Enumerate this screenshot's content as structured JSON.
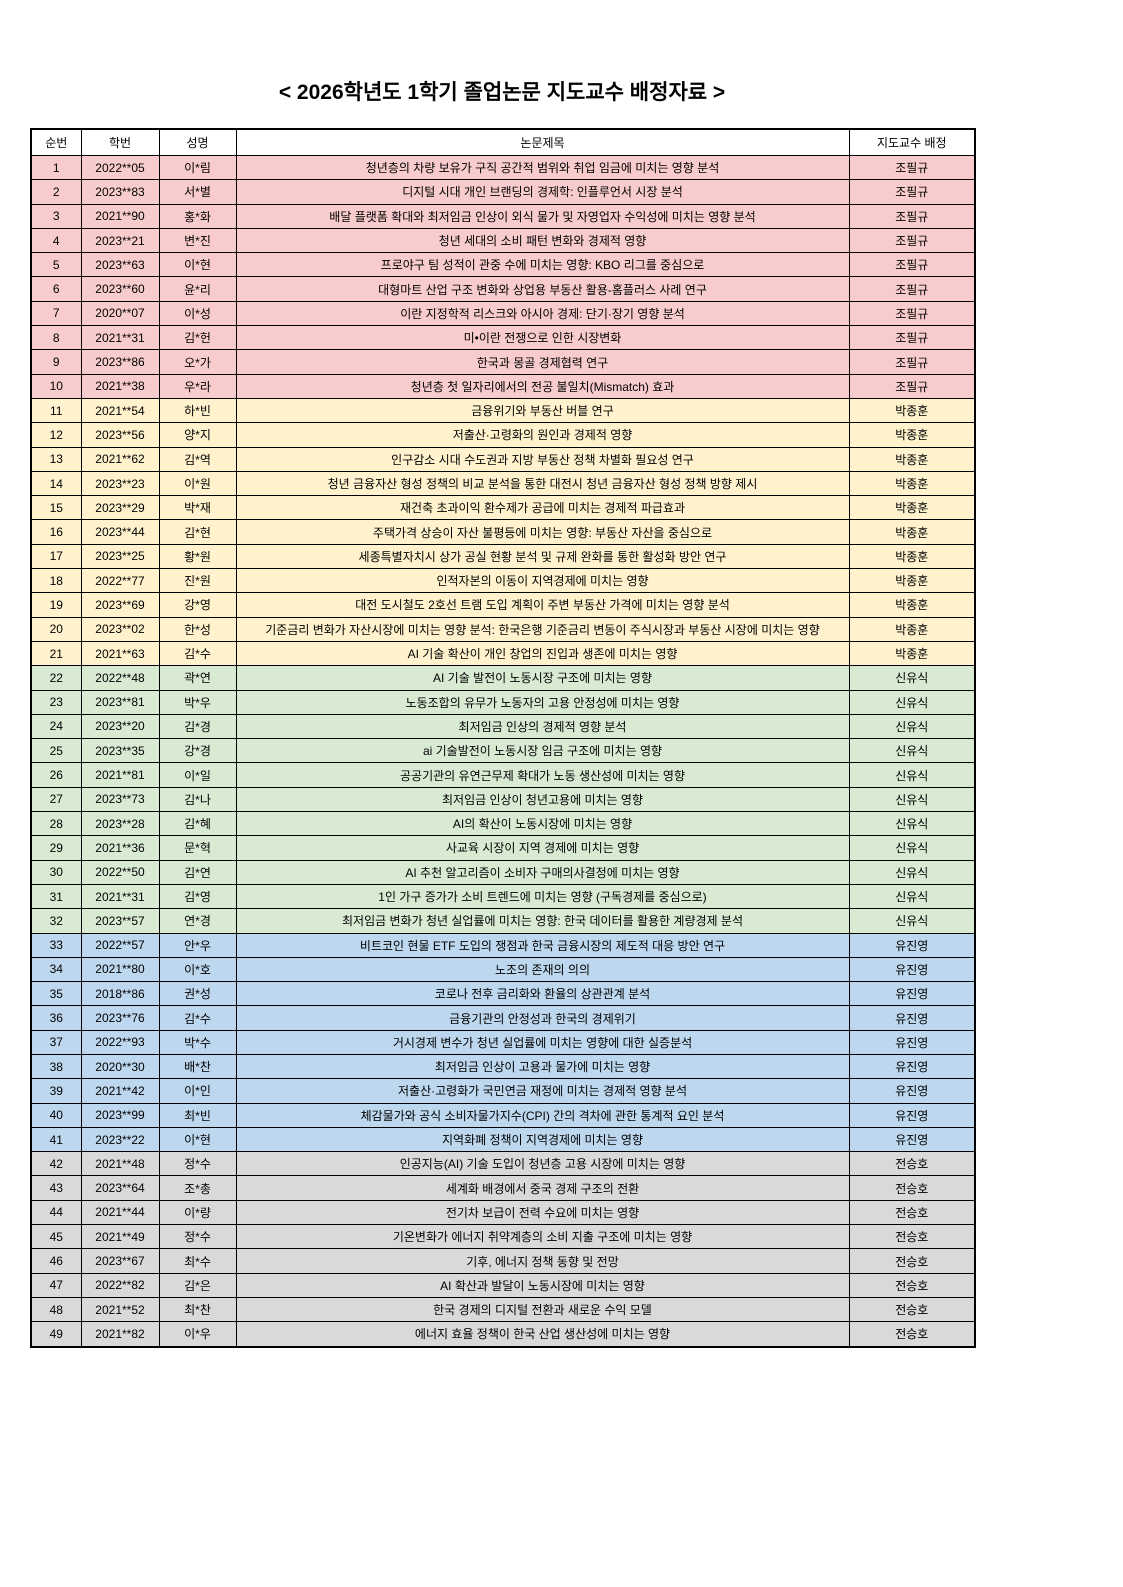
{
  "title": "< 2026학년도 1학기 졸업논문 지도교수 배정자료 >",
  "advisor_colors": {
    "조필규": "#F8CBCC",
    "박종훈": "#FFF2CC",
    "신유식": "#D9EAD3",
    "유진영": "#BDD7EE",
    "전승호": "#D9D9D9"
  },
  "table": {
    "columns": {
      "no": "순번",
      "student_id": "학번",
      "name": "성명",
      "thesis_title": "논문제목",
      "advisor": "지도교수 배정"
    },
    "rows": [
      {
        "no": "1",
        "student_id": "2022**05",
        "name": "이*림",
        "thesis_title": "청년층의 차량 보유가 구직 공간적 범위와 취업 임금에 미치는 영향 분석",
        "advisor": "조필규"
      },
      {
        "no": "2",
        "student_id": "2023**83",
        "name": "서*별",
        "thesis_title": "디지털 시대 개인 브랜딩의 경제학: 인플루언서 시장 분석",
        "advisor": "조필규"
      },
      {
        "no": "3",
        "student_id": "2021**90",
        "name": "홍*화",
        "thesis_title": "배달 플랫폼 확대와 최저임금 인상이 외식 물가 및 자영업자 수익성에 미치는 영향 분석",
        "advisor": "조필규"
      },
      {
        "no": "4",
        "student_id": "2023**21",
        "name": "변*진",
        "thesis_title": "청년 세대의 소비 패턴 변화와 경제적 영향",
        "advisor": "조필규"
      },
      {
        "no": "5",
        "student_id": "2023**63",
        "name": "이*현",
        "thesis_title": "프로야구 팀 성적이 관중 수에 미치는 영향: KBO 리그를 중심으로",
        "advisor": "조필규"
      },
      {
        "no": "6",
        "student_id": "2023**60",
        "name": "윤*리",
        "thesis_title": "대형마트 산업 구조 변화와 상업용 부동산 활용-홈플러스 사례 연구",
        "advisor": "조필규"
      },
      {
        "no": "7",
        "student_id": "2020**07",
        "name": "이*성",
        "thesis_title": "이란 지정학적 리스크와 아시아 경제: 단기·장기 영향 분석",
        "advisor": "조필규"
      },
      {
        "no": "8",
        "student_id": "2021**31",
        "name": "김*헌",
        "thesis_title": "미•이란 전쟁으로 인한 시장변화",
        "advisor": "조필규"
      },
      {
        "no": "9",
        "student_id": "2023**86",
        "name": "오*가",
        "thesis_title": "한국과 몽골 경제협력 연구",
        "advisor": "조필규"
      },
      {
        "no": "10",
        "student_id": "2021**38",
        "name": "우*라",
        "thesis_title": "청년층 첫 일자리에서의 전공 불일치(Mismatch) 효과",
        "advisor": "조필규"
      },
      {
        "no": "11",
        "student_id": "2021**54",
        "name": "하*빈",
        "thesis_title": "금융위기와 부동산 버블 연구",
        "advisor": "박종훈"
      },
      {
        "no": "12",
        "student_id": "2023**56",
        "name": "양*지",
        "thesis_title": "저출산·고령화의 원인과 경제적 영향",
        "advisor": "박종훈"
      },
      {
        "no": "13",
        "student_id": "2021**62",
        "name": "김*역",
        "thesis_title": "인구감소 시대 수도권과 지방 부동산 정책 차별화 필요성 연구",
        "advisor": "박종훈"
      },
      {
        "no": "14",
        "student_id": "2023**23",
        "name": "이*원",
        "thesis_title": "청년 금융자산 형성 정책의 비교 분석을 통한 대전시 청년 금융자산 형성 정책 방향 제시",
        "advisor": "박종훈"
      },
      {
        "no": "15",
        "student_id": "2023**29",
        "name": "박*재",
        "thesis_title": "재건축 초과이익 환수제가 공급에 미치는 경제적 파급효과",
        "advisor": "박종훈"
      },
      {
        "no": "16",
        "student_id": "2023**44",
        "name": "김*현",
        "thesis_title": "주택가격 상승이 자산 불평등에 미치는 영향: 부동산 자산을 중심으로",
        "advisor": "박종훈"
      },
      {
        "no": "17",
        "student_id": "2023**25",
        "name": "황*원",
        "thesis_title": "세종특별자치시 상가 공실 현황 분석 및 규제 완화를 통한 활성화 방안 연구",
        "advisor": "박종훈"
      },
      {
        "no": "18",
        "student_id": "2022**77",
        "name": "진*원",
        "thesis_title": "인적자본의 이동이 지역경제에 미치는 영향",
        "advisor": "박종훈"
      },
      {
        "no": "19",
        "student_id": "2023**69",
        "name": "강*영",
        "thesis_title": "대전 도시철도 2호선 트램 도입 계획이 주변 부동산 가격에 미치는 영향 분석",
        "advisor": "박종훈"
      },
      {
        "no": "20",
        "student_id": "2023**02",
        "name": "한*성",
        "thesis_title": "기준금리 변화가 자산시장에 미치는 영향 분석: 한국은행 기준금리 변동이 주식시장과 부동산 시장에 미치는 영향",
        "advisor": "박종훈"
      },
      {
        "no": "21",
        "student_id": "2021**63",
        "name": "김*수",
        "thesis_title": "AI 기술 확산이 개인 창업의 진입과 생존에 미치는 영향",
        "advisor": "박종훈"
      },
      {
        "no": "22",
        "student_id": "2022**48",
        "name": "곽*연",
        "thesis_title": "AI 기술 발전이 노동시장 구조에 미치는 영향",
        "advisor": "신유식"
      },
      {
        "no": "23",
        "student_id": "2023**81",
        "name": "박*우",
        "thesis_title": "노동조합의 유무가 노동자의 고용 안정성에 미치는 영향",
        "advisor": "신유식"
      },
      {
        "no": "24",
        "student_id": "2023**20",
        "name": "김*경",
        "thesis_title": "최저임금 인상의 경제적 영향 분석",
        "advisor": "신유식"
      },
      {
        "no": "25",
        "student_id": "2023**35",
        "name": "강*경",
        "thesis_title": "ai 기술발전이 노동시장 임금 구조에 미치는 영향",
        "advisor": "신유식"
      },
      {
        "no": "26",
        "student_id": "2021**81",
        "name": "이*일",
        "thesis_title": "공공기관의 유연근무제 확대가 노동 생산성에 미치는 영향",
        "advisor": "신유식"
      },
      {
        "no": "27",
        "student_id": "2023**73",
        "name": "김*나",
        "thesis_title": "최저임금 인상이 청년고용에 미치는 영향",
        "advisor": "신유식"
      },
      {
        "no": "28",
        "student_id": "2023**28",
        "name": "김*혜",
        "thesis_title": "AI의 확산이 노동시장에 미치는 영향",
        "advisor": "신유식"
      },
      {
        "no": "29",
        "student_id": "2021**36",
        "name": "문*혁",
        "thesis_title": "사교육 시장이 지역 경제에 미치는 영향",
        "advisor": "신유식"
      },
      {
        "no": "30",
        "student_id": "2022**50",
        "name": "김*연",
        "thesis_title": "AI 추천 알고리즘이 소비자 구매의사결정에 미치는 영향",
        "advisor": "신유식"
      },
      {
        "no": "31",
        "student_id": "2021**31",
        "name": "김*영",
        "thesis_title": "1인 가구 증가가 소비 트렌드에 미치는 영향 (구독경제를 중심으로)",
        "advisor": "신유식"
      },
      {
        "no": "32",
        "student_id": "2023**57",
        "name": "연*경",
        "thesis_title": "최저임금 변화가 청년 실업률에 미치는 영향: 한국 데이터를 활용한 계량경제 분석",
        "advisor": "신유식"
      },
      {
        "no": "33",
        "student_id": "2022**57",
        "name": "안*우",
        "thesis_title": "비트코인 현물 ETF 도입의 쟁점과 한국 금융시장의 제도적 대응 방안 연구",
        "advisor": "유진영"
      },
      {
        "no": "34",
        "student_id": "2021**80",
        "name": "이*호",
        "thesis_title": "노조의 존재의 의의",
        "advisor": "유진영"
      },
      {
        "no": "35",
        "student_id": "2018**86",
        "name": "권*성",
        "thesis_title": "코로나 전후 금리화와 환율의 상관관계 분석",
        "advisor": "유진영"
      },
      {
        "no": "36",
        "student_id": "2023**76",
        "name": "김*수",
        "thesis_title": "금융기관의 안정성과 한국의 경제위기",
        "advisor": "유진영"
      },
      {
        "no": "37",
        "student_id": "2022**93",
        "name": "박*수",
        "thesis_title": "거시경제 변수가 청년 실업률에 미치는 영향에 대한 실증분석",
        "advisor": "유진영"
      },
      {
        "no": "38",
        "student_id": "2020**30",
        "name": "배*찬",
        "thesis_title": "최저임금 인상이 고용과 물가에 미치는 영향",
        "advisor": "유진영"
      },
      {
        "no": "39",
        "student_id": "2021**42",
        "name": "이*인",
        "thesis_title": "저출산·고령화가 국민연금 재정에 미치는 경제적 영향 분석",
        "advisor": "유진영"
      },
      {
        "no": "40",
        "student_id": "2023**99",
        "name": "최*빈",
        "thesis_title": "체감물가와 공식 소비자물가지수(CPI) 간의 격차에 관한 통계적 요인 분석",
        "advisor": "유진영"
      },
      {
        "no": "41",
        "student_id": "2023**22",
        "name": "이*현",
        "thesis_title": "지역화폐 정책이 지역경제에 미치는 영향",
        "advisor": "유진영"
      },
      {
        "no": "42",
        "student_id": "2021**48",
        "name": "정*수",
        "thesis_title": "인공지능(AI) 기술 도입이 청년층 고용 시장에 미치는 영향",
        "advisor": "전승호"
      },
      {
        "no": "43",
        "student_id": "2023**64",
        "name": "조*총",
        "thesis_title": "세계화 배경에서 중국 경제 구조의 전환",
        "advisor": "전승호"
      },
      {
        "no": "44",
        "student_id": "2021**44",
        "name": "이*량",
        "thesis_title": "전기차 보급이 전력 수요에 미치는 영향",
        "advisor": "전승호"
      },
      {
        "no": "45",
        "student_id": "2021**49",
        "name": "정*수",
        "thesis_title": "기온변화가 에너지 취약계층의 소비 지출 구조에 미치는 영향",
        "advisor": "전승호"
      },
      {
        "no": "46",
        "student_id": "2023**67",
        "name": "최*수",
        "thesis_title": "기후, 에너지 정책 동향 및 전망",
        "advisor": "전승호"
      },
      {
        "no": "47",
        "student_id": "2022**82",
        "name": "김*은",
        "thesis_title": "AI 확산과 발달이 노동시장에 미치는 영향",
        "advisor": "전승호"
      },
      {
        "no": "48",
        "student_id": "2021**52",
        "name": "최*찬",
        "thesis_title": "한국 경제의 디지털 전환과 새로운 수익 모델",
        "advisor": "전승호"
      },
      {
        "no": "49",
        "student_id": "2021**82",
        "name": "이*우",
        "thesis_title": "에너지 효율 정책이 한국 산업 생산성에 미치는 영향",
        "advisor": "전승호"
      }
    ]
  }
}
